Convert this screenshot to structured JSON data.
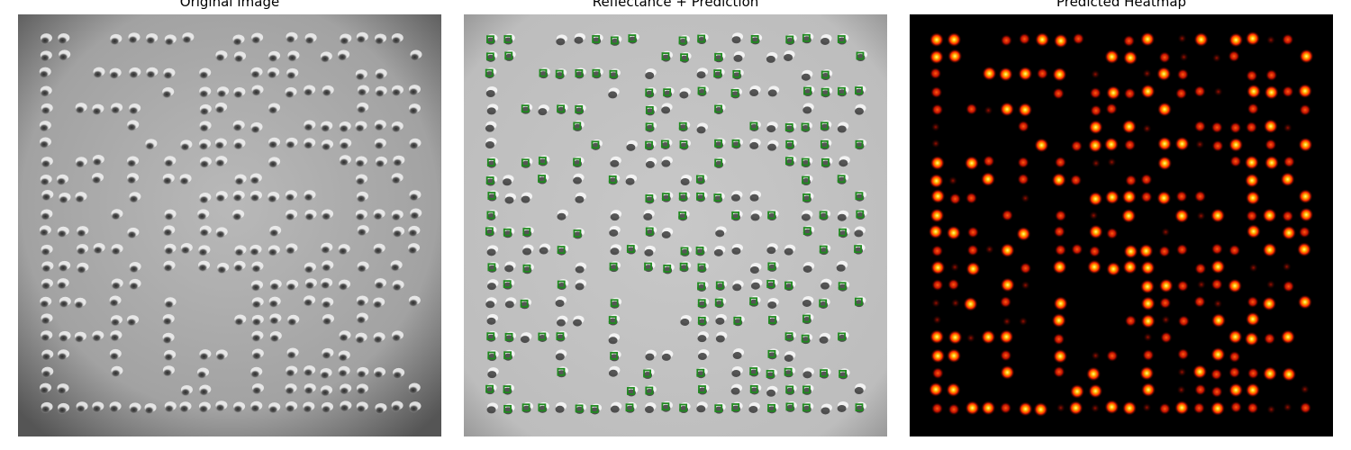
{
  "panels": [
    {
      "title": "Original Image"
    },
    {
      "title": "Reflectance + Prediction"
    },
    {
      "title": "Predicted Heatmap"
    }
  ],
  "colors": {
    "prediction_box": "#1f8a1f",
    "heatmap_background": "#000000",
    "heatmap_hot": "#ffff66",
    "heatmap_warm": "#ff2a00"
  }
}
